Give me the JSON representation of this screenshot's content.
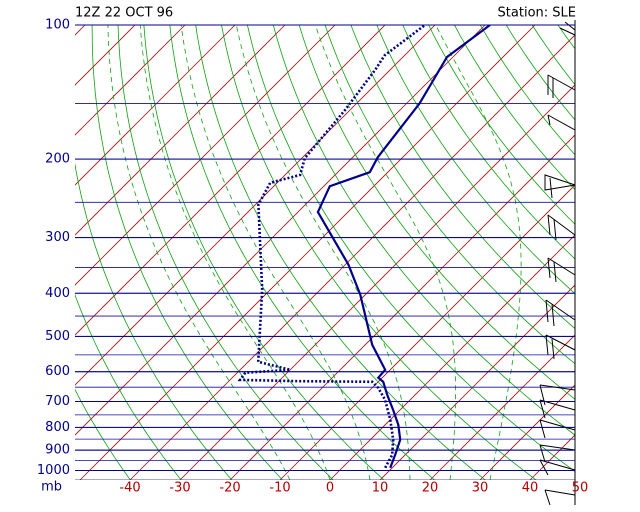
{
  "chart_data": {
    "type": "skew-t",
    "title": "12Z 22 OCT 96",
    "station": "Station: SLE",
    "y_unit": "mb",
    "ylog": true,
    "ylim": [
      100,
      1050
    ],
    "yticks": [
      100,
      200,
      300,
      400,
      500,
      600,
      700,
      800,
      900,
      1000
    ],
    "xlim": [
      -51,
      49
    ],
    "xticks": [
      -40,
      -30,
      -20,
      -10,
      0,
      10,
      20,
      30,
      40,
      50
    ],
    "series": [
      {
        "color": "#00008b",
        "style": "solid",
        "pressure": [
          986,
          922,
          853,
          789,
          731,
          676,
          632,
          619,
          594,
          522,
          403,
          345,
          263,
          230,
          214,
          198,
          150,
          118,
          100
        ],
        "values": [
          9.6,
          8.0,
          6.0,
          2.6,
          -1.4,
          -5.6,
          -9.0,
          -10.8,
          -11.0,
          -18.6,
          -31,
          -39.4,
          -56,
          -58.8,
          -53.6,
          -55,
          -57.4,
          -61.2,
          -59
        ]
      },
      {
        "color": "#00008b",
        "style": "dotted",
        "pressure": [
          986,
          922,
          853,
          769,
          694,
          652,
          632,
          630,
          626,
          603,
          594,
          570,
          393,
          253,
          226,
          217,
          199,
          155,
          126,
          117,
          100
        ],
        "values": [
          8.6,
          7.4,
          4.6,
          0,
          -5,
          -8.8,
          -11.2,
          -25.6,
          -38,
          -38.4,
          -30,
          -38,
          -51.6,
          -69.4,
          -71.4,
          -67,
          -69.4,
          -71,
          -73,
          -74,
          -72
        ]
      }
    ]
  }
}
